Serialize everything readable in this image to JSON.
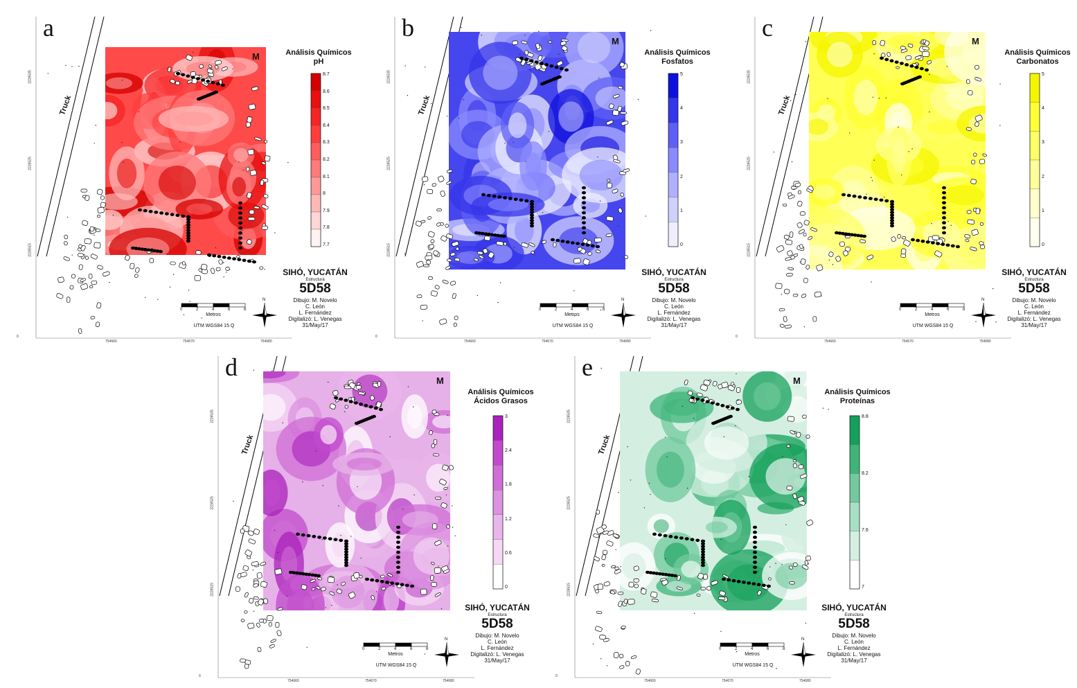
{
  "panels": [
    {
      "letter": "a",
      "title1": "Análisis Químicos",
      "title2": "pH",
      "legend": [
        "8.7",
        "8.6",
        "8.5",
        "8.4",
        "8.3",
        "8.2",
        "8.1",
        "8",
        "7.9",
        "7.8",
        "7.7"
      ],
      "ramp": [
        "#fff2f2",
        "#ffd6d6",
        "#ffb8b8",
        "#ff9999",
        "#ff7a7a",
        "#ff5c5c",
        "#ff3d3d",
        "#f52525",
        "#e81010",
        "#d40000"
      ],
      "base": "#ff4a4a"
    },
    {
      "letter": "b",
      "title1": "Análisis Químicos",
      "title2": "Fosfatos",
      "legend": [
        "5",
        "4",
        "3",
        "2",
        "1",
        "0"
      ],
      "ramp": [
        "#eeeeff",
        "#d0d0ff",
        "#b0b0ff",
        "#8a8aff",
        "#5f5ff5",
        "#3535ea",
        "#1010dd"
      ],
      "base": "#4646ee"
    },
    {
      "letter": "c",
      "title1": "Análisis Químicos",
      "title2": "Carbonatos",
      "legend": [
        "5",
        "4",
        "3",
        "2",
        "1",
        "0"
      ],
      "ramp": [
        "#ffffee",
        "#ffffcc",
        "#ffff99",
        "#ffff66",
        "#ffff33",
        "#f5f500"
      ],
      "base": "#ffff55"
    },
    {
      "letter": "d",
      "title1": "Análisis Químicos",
      "title2": "Ácidos Grasos",
      "legend": [
        "3",
        "2.4",
        "1.8",
        "1.2",
        "0.6",
        "0"
      ],
      "ramp": [
        "#ffffff",
        "#f4d8f4",
        "#e8b6ea",
        "#dc92e0",
        "#cf6ed6",
        "#c14bcc",
        "#aa22bb"
      ],
      "base": "#e6b0e8"
    },
    {
      "letter": "e",
      "title1": "Análisis Químicos",
      "title2": "Proteínas",
      "legend": [
        "8.8",
        "8.2",
        "7.6",
        "7"
      ],
      "ramp": [
        "#ffffff",
        "#d4efe2",
        "#a8dfc4",
        "#72c99e",
        "#3fb479",
        "#14a05a"
      ],
      "base": "#d4efe2"
    }
  ],
  "common": {
    "site": "SIHÓ, YUCATÁN",
    "estructura": "Estructura",
    "code": "5D58",
    "credits": [
      "Dibujo: M. Novelo",
      "C. León",
      "L. Fernández",
      "Digitalizó: L. Venegas",
      "31/May/17"
    ],
    "utm": "UTM WGS84 15 Q",
    "scale_unit": "Metros",
    "scale_ticks": [
      "0",
      "2",
      "4",
      "6",
      "8"
    ],
    "truck": "Truck",
    "m": "M",
    "north": "N",
    "x_ticks": [
      "754660",
      "754670",
      "754680"
    ],
    "y_ticks": [
      "2226535",
      "2226525",
      "2226515"
    ],
    "corner": "0"
  },
  "colors": {
    "outline": "#000000",
    "background": "#ffffff"
  }
}
